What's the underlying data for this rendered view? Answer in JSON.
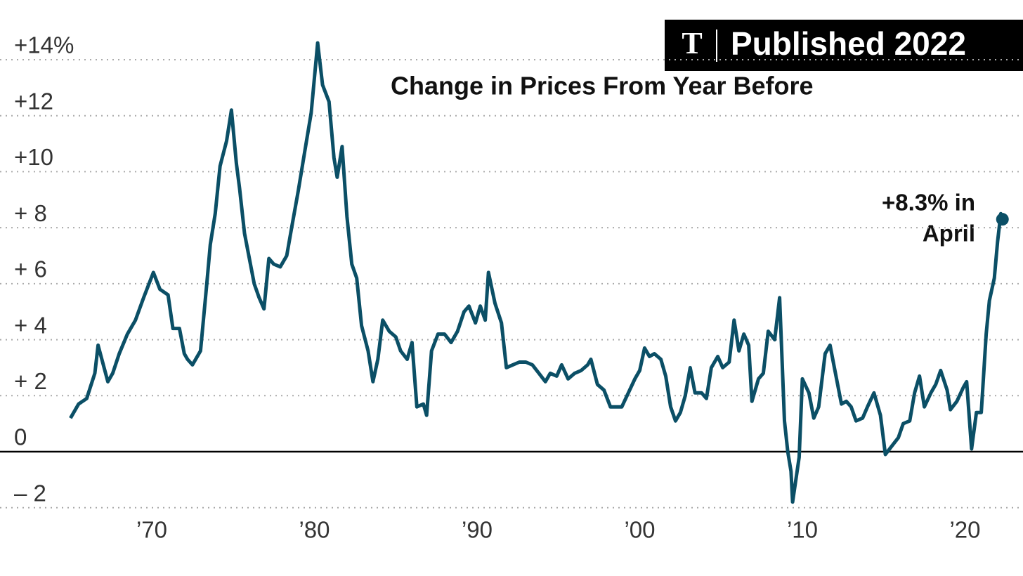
{
  "chart_data": {
    "type": "line",
    "title": "Change in Prices From Year Before",
    "badge": {
      "logo": "T",
      "text": "Published 2022"
    },
    "annotation": [
      "+8.3% in",
      "April"
    ],
    "color": "#0b4f66",
    "xlim": [
      1963.8,
      2023.5
    ],
    "ylim": [
      -2.5,
      15.2
    ],
    "xticks": [
      {
        "value": 1970,
        "label": "’70"
      },
      {
        "value": 1980,
        "label": "’80"
      },
      {
        "value": 1990,
        "label": "’90"
      },
      {
        "value": 2000,
        "label": "’00"
      },
      {
        "value": 2010,
        "label": "’10"
      },
      {
        "value": 2020,
        "label": "’20"
      }
    ],
    "yticks": [
      {
        "value": -2,
        "label": "– 2"
      },
      0,
      {
        "value": 2,
        "label": "+ 2"
      },
      {
        "value": 4,
        "label": "+ 4"
      },
      {
        "value": 6,
        "label": "+ 6"
      },
      {
        "value": 8,
        "label": "+ 8"
      },
      {
        "value": 10,
        "label": "+10"
      },
      {
        "value": 12,
        "label": "+12"
      },
      {
        "value": 14,
        "label": "+14%"
      }
    ],
    "grid": true,
    "x": [
      1965.0,
      1965.5,
      1966.0,
      1966.5,
      1966.7,
      1967.3,
      1967.6,
      1968.0,
      1968.5,
      1969.0,
      1969.5,
      1970.1,
      1970.5,
      1971.0,
      1971.3,
      1971.7,
      1972.0,
      1972.2,
      1972.5,
      1973.0,
      1973.4,
      1973.6,
      1973.9,
      1974.2,
      1974.6,
      1974.9,
      1975.2,
      1975.4,
      1975.7,
      1976.0,
      1976.3,
      1976.6,
      1976.9,
      1977.2,
      1977.5,
      1977.9,
      1978.3,
      1978.6,
      1979.0,
      1979.4,
      1979.8,
      1980.2,
      1980.5,
      1980.9,
      1981.2,
      1981.4,
      1981.7,
      1982.0,
      1982.3,
      1982.6,
      1982.9,
      1983.3,
      1983.6,
      1983.9,
      1984.2,
      1984.6,
      1985.0,
      1985.3,
      1985.7,
      1986.0,
      1986.3,
      1986.7,
      1986.9,
      1987.2,
      1987.6,
      1988.0,
      1988.4,
      1988.8,
      1989.2,
      1989.5,
      1989.9,
      1990.2,
      1990.5,
      1990.7,
      1991.1,
      1991.5,
      1991.8,
      1992.2,
      1992.6,
      1993.0,
      1993.4,
      1993.8,
      1994.2,
      1994.5,
      1994.9,
      1995.2,
      1995.6,
      1996.0,
      1996.4,
      1996.8,
      1997.0,
      1997.4,
      1997.8,
      1998.2,
      1998.6,
      1998.9,
      1999.3,
      1999.7,
      2000.0,
      2000.3,
      2000.6,
      2000.9,
      2001.3,
      2001.6,
      2001.9,
      2002.2,
      2002.5,
      2002.8,
      2003.1,
      2003.4,
      2003.8,
      2004.1,
      2004.4,
      2004.8,
      2005.1,
      2005.5,
      2005.8,
      2006.1,
      2006.4,
      2006.7,
      2006.9,
      2007.3,
      2007.6,
      2007.9,
      2008.3,
      2008.6,
      2008.9,
      2009.1,
      2009.3,
      2009.4,
      2009.8,
      2010.0,
      2010.4,
      2010.7,
      2011.0,
      2011.4,
      2011.7,
      2012.0,
      2012.4,
      2012.7,
      2013.0,
      2013.3,
      2013.7,
      2014.0,
      2014.4,
      2014.8,
      2015.1,
      2015.5,
      2015.9,
      2016.2,
      2016.6,
      2016.9,
      2017.2,
      2017.5,
      2017.9,
      2018.2,
      2018.5,
      2018.9,
      2019.1,
      2019.5,
      2019.9,
      2020.1,
      2020.4,
      2020.7,
      2021.0,
      2021.3,
      2021.5,
      2021.8,
      2022.0,
      2022.2,
      2022.3
    ],
    "values": [
      1.2,
      1.7,
      1.9,
      2.8,
      3.8,
      2.5,
      2.8,
      3.5,
      4.2,
      4.7,
      5.5,
      6.4,
      5.8,
      5.6,
      4.4,
      4.4,
      3.5,
      3.3,
      3.1,
      3.6,
      6.1,
      7.4,
      8.5,
      10.2,
      11.1,
      12.2,
      10.3,
      9.4,
      7.8,
      6.9,
      6.0,
      5.5,
      5.1,
      6.9,
      6.7,
      6.6,
      7.0,
      8.0,
      9.3,
      10.7,
      12.1,
      14.6,
      13.1,
      12.5,
      10.5,
      9.8,
      10.9,
      8.4,
      6.7,
      6.2,
      4.5,
      3.6,
      2.5,
      3.3,
      4.7,
      4.3,
      4.1,
      3.6,
      3.3,
      3.9,
      1.6,
      1.7,
      1.3,
      3.6,
      4.2,
      4.2,
      3.9,
      4.3,
      5.0,
      5.2,
      4.6,
      5.2,
      4.7,
      6.4,
      5.3,
      4.6,
      3.0,
      3.1,
      3.2,
      3.2,
      3.1,
      2.8,
      2.5,
      2.8,
      2.7,
      3.1,
      2.6,
      2.8,
      2.9,
      3.1,
      3.3,
      2.4,
      2.2,
      1.6,
      1.6,
      1.6,
      2.1,
      2.6,
      2.9,
      3.7,
      3.4,
      3.5,
      3.3,
      2.7,
      1.6,
      1.1,
      1.4,
      2.0,
      3.0,
      2.1,
      2.1,
      1.9,
      3.0,
      3.4,
      3.0,
      3.2,
      4.7,
      3.6,
      4.2,
      3.8,
      1.8,
      2.6,
      2.8,
      4.3,
      4.0,
      5.5,
      1.1,
      0.0,
      -0.7,
      -1.8,
      -0.2,
      2.6,
      2.1,
      1.2,
      1.6,
      3.5,
      3.8,
      2.9,
      1.7,
      1.8,
      1.6,
      1.1,
      1.2,
      1.6,
      2.1,
      1.3,
      -0.1,
      0.2,
      0.5,
      1.0,
      1.1,
      2.1,
      2.7,
      1.6,
      2.1,
      2.4,
      2.9,
      2.2,
      1.5,
      1.8,
      2.3,
      2.5,
      0.1,
      1.4,
      1.4,
      4.2,
      5.4,
      6.2,
      7.5,
      8.5,
      8.3
    ]
  }
}
